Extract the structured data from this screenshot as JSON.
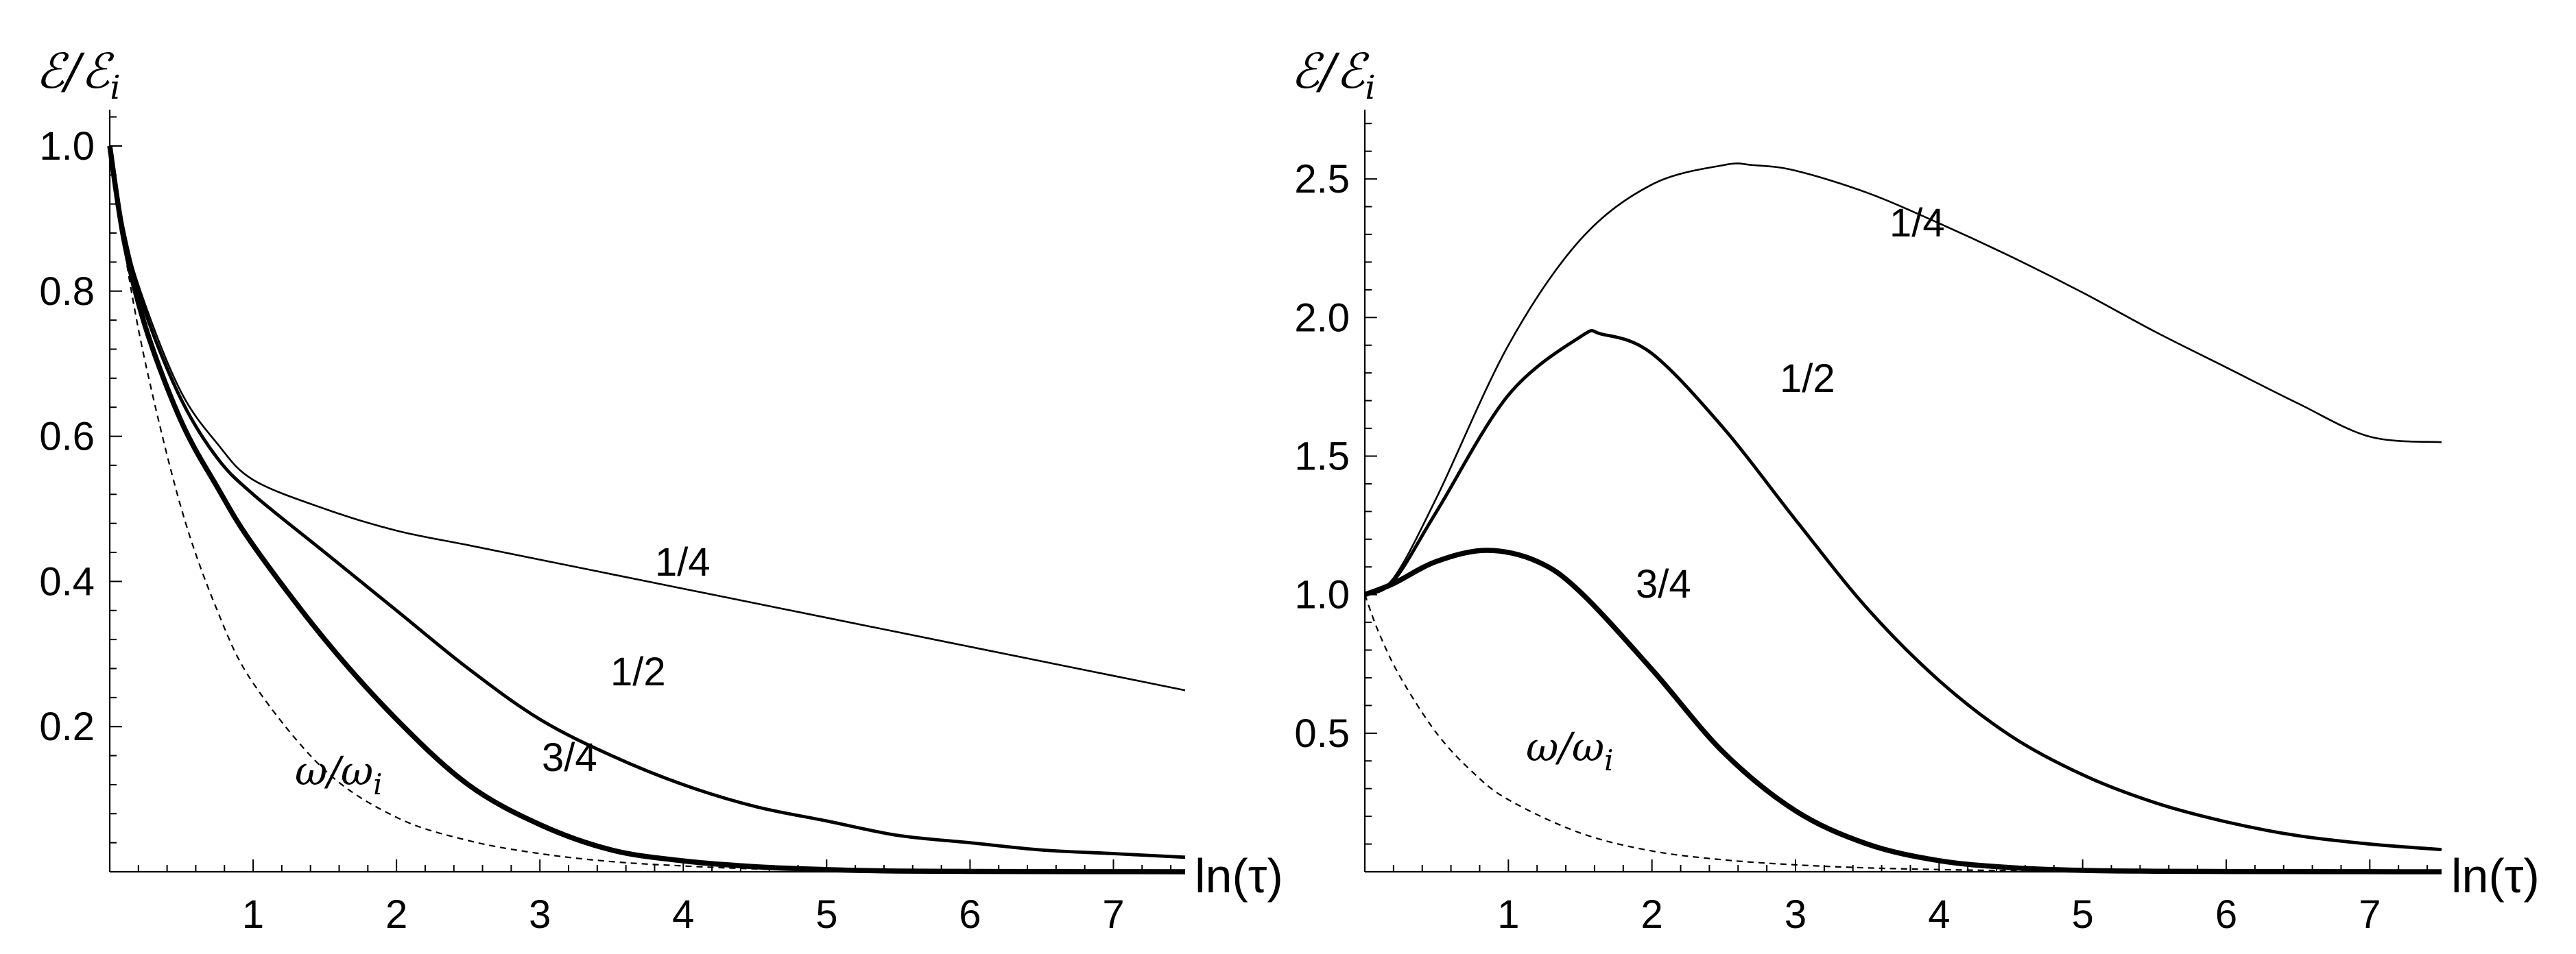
{
  "chart_data": [
    {
      "type": "line",
      "panel": "left",
      "ylabel": "ℰ/ℰ",
      "ylabel_sub": "i",
      "xlabel": "ln(τ)",
      "xlim": [
        0,
        7.5
      ],
      "ylim": [
        0,
        1.05
      ],
      "x_ticks": [
        1,
        2,
        3,
        4,
        5,
        6,
        7
      ],
      "x_tick_labels": [
        "1",
        "2",
        "3",
        "4",
        "5",
        "6",
        "7"
      ],
      "y_ticks": [
        0.2,
        0.4,
        0.6,
        0.8,
        1.0
      ],
      "y_tick_labels": [
        "0.2",
        "0.4",
        "0.6",
        "0.8",
        "1.0"
      ],
      "series": [
        {
          "name": "1/4",
          "label": "1/4",
          "style": "thin",
          "x": [
            0,
            0.1,
            0.25,
            0.5,
            0.75,
            1,
            1.5,
            2,
            2.5,
            3,
            3.5,
            4,
            4.5,
            5,
            5.5,
            6,
            6.5,
            7,
            7.5
          ],
          "y": [
            1.0,
            0.88,
            0.78,
            0.66,
            0.59,
            0.54,
            0.5,
            0.47,
            0.45,
            0.43,
            0.41,
            0.39,
            0.37,
            0.35,
            0.33,
            0.31,
            0.29,
            0.27,
            0.25
          ]
        },
        {
          "name": "1/2",
          "label": "1/2",
          "style": "medium",
          "x": [
            0,
            0.1,
            0.25,
            0.5,
            0.75,
            1,
            1.5,
            2,
            2.5,
            3,
            3.5,
            4,
            4.5,
            5,
            5.5,
            6,
            6.5,
            7,
            7.5
          ],
          "y": [
            1.0,
            0.88,
            0.77,
            0.65,
            0.57,
            0.52,
            0.44,
            0.36,
            0.28,
            0.21,
            0.16,
            0.12,
            0.09,
            0.07,
            0.05,
            0.04,
            0.03,
            0.025,
            0.02
          ]
        },
        {
          "name": "3/4",
          "label": "3/4",
          "style": "thick",
          "x": [
            0,
            0.1,
            0.25,
            0.5,
            0.75,
            1,
            1.5,
            2,
            2.5,
            3,
            3.5,
            4,
            4.5,
            5,
            5.5,
            6,
            6.5,
            7,
            7.5
          ],
          "y": [
            1.0,
            0.87,
            0.75,
            0.62,
            0.53,
            0.45,
            0.32,
            0.21,
            0.12,
            0.065,
            0.03,
            0.015,
            0.007,
            0.003,
            0.001,
            0.0005,
            0.0002,
            0.0001,
            0
          ]
        },
        {
          "name": "ω/ωi",
          "label": "ω/ω",
          "label_sub": "i",
          "style": "dashed",
          "x": [
            0,
            0.1,
            0.25,
            0.5,
            0.75,
            1,
            1.5,
            2,
            2.5,
            3,
            3.5,
            4,
            4.5,
            5,
            5.5,
            6,
            6.5,
            7,
            7.5
          ],
          "y": [
            1.0,
            0.86,
            0.7,
            0.5,
            0.36,
            0.26,
            0.14,
            0.075,
            0.043,
            0.025,
            0.014,
            0.008,
            0.004,
            0.002,
            0.001,
            0.0005,
            0.0002,
            0.0001,
            0
          ]
        }
      ]
    },
    {
      "type": "line",
      "panel": "right",
      "ylabel": "ℰ/ℰ",
      "ylabel_sub": "i",
      "xlabel": "ln(τ)",
      "xlim": [
        0,
        7.5
      ],
      "ylim": [
        0,
        2.75
      ],
      "x_ticks": [
        1,
        2,
        3,
        4,
        5,
        6,
        7
      ],
      "x_tick_labels": [
        "1",
        "2",
        "3",
        "4",
        "5",
        "6",
        "7"
      ],
      "y_ticks": [
        0.5,
        1.0,
        1.5,
        2.0,
        2.5
      ],
      "y_tick_labels": [
        "0.5",
        "1.0",
        "1.5",
        "2.0",
        "2.5"
      ],
      "series": [
        {
          "name": "1/4",
          "label": "1/4",
          "style": "thin",
          "x": [
            0,
            0.2,
            0.5,
            1,
            1.5,
            2,
            2.5,
            2.7,
            3,
            3.5,
            4,
            4.5,
            5,
            5.5,
            6,
            6.5,
            7,
            7.5
          ],
          "y": [
            1.0,
            1.06,
            1.35,
            1.9,
            2.28,
            2.48,
            2.55,
            2.55,
            2.53,
            2.45,
            2.34,
            2.22,
            2.09,
            1.95,
            1.82,
            1.69,
            1.57,
            1.55
          ]
        },
        {
          "name": "1/2",
          "label": "1/2",
          "style": "medium",
          "x": [
            0,
            0.2,
            0.5,
            1,
            1.5,
            1.65,
            2,
            2.5,
            3,
            3.5,
            4,
            4.5,
            5,
            5.5,
            6,
            6.5,
            7,
            7.5
          ],
          "y": [
            1.0,
            1.05,
            1.3,
            1.72,
            1.93,
            1.94,
            1.87,
            1.6,
            1.27,
            0.95,
            0.69,
            0.49,
            0.35,
            0.25,
            0.18,
            0.13,
            0.1,
            0.08
          ]
        },
        {
          "name": "3/4",
          "label": "3/4",
          "style": "thick",
          "x": [
            0,
            0.2,
            0.5,
            0.85,
            1.2,
            1.5,
            2,
            2.5,
            3,
            3.5,
            4,
            4.5,
            5,
            5.5,
            6,
            6.5,
            7,
            7.5
          ],
          "y": [
            1.0,
            1.04,
            1.12,
            1.16,
            1.12,
            1.01,
            0.73,
            0.43,
            0.22,
            0.1,
            0.04,
            0.015,
            0.005,
            0.002,
            0.001,
            0.0005,
            0.0002,
            0
          ]
        },
        {
          "name": "ω/ωi",
          "label": "ω/ω",
          "label_sub": "i",
          "style": "dashed",
          "x": [
            0,
            0.1,
            0.25,
            0.5,
            0.75,
            1,
            1.5,
            2,
            2.5,
            3,
            3.5,
            4,
            4.5,
            5,
            5.5,
            6,
            6.5,
            7,
            7.5
          ],
          "y": [
            1.0,
            0.86,
            0.7,
            0.5,
            0.36,
            0.26,
            0.14,
            0.075,
            0.043,
            0.025,
            0.014,
            0.008,
            0.004,
            0.002,
            0.001,
            0.0005,
            0.0002,
            0.0001,
            0
          ]
        }
      ]
    }
  ]
}
